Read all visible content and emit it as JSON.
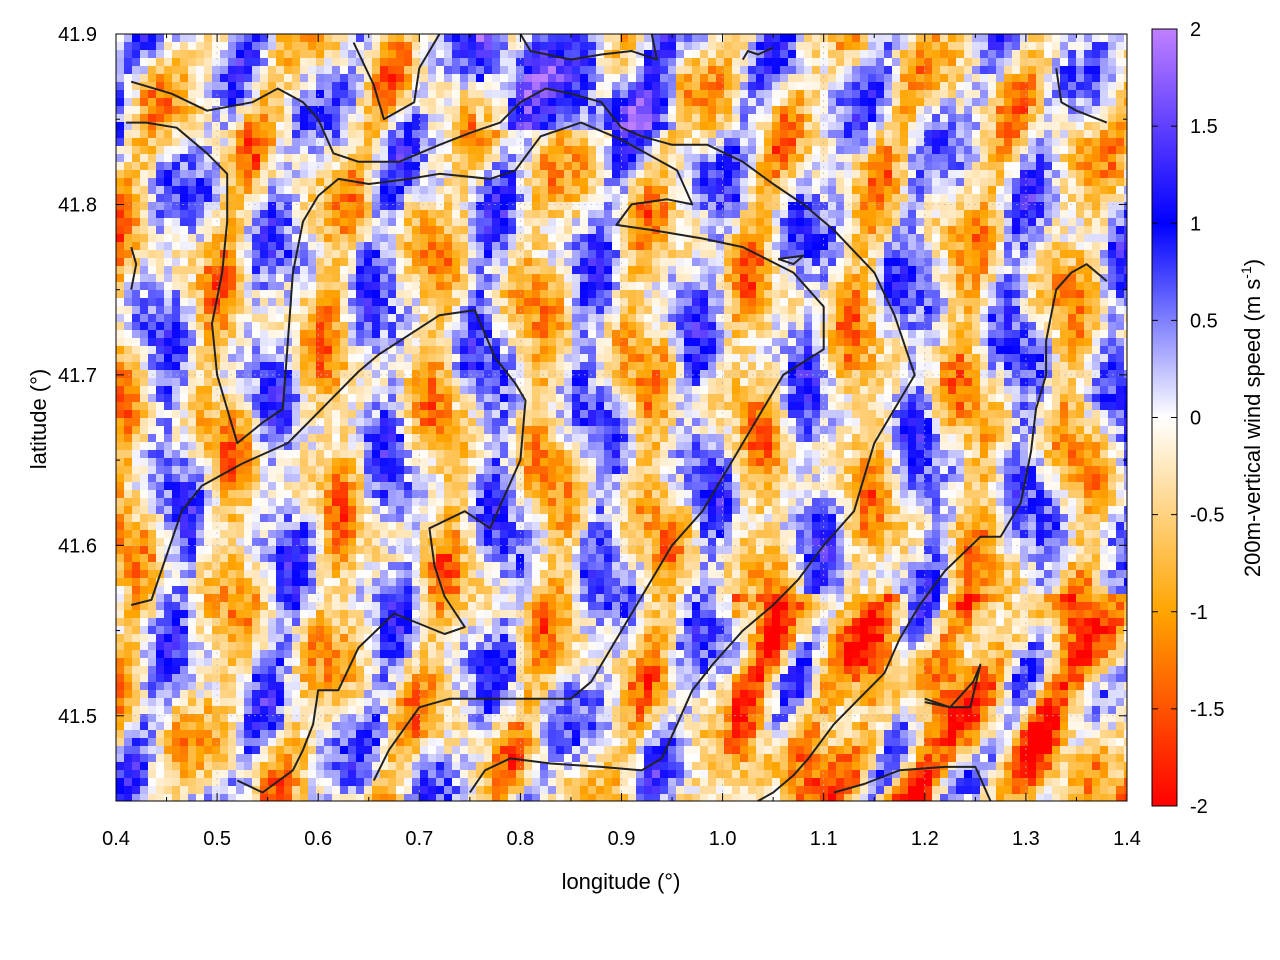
{
  "chart_data": {
    "type": "heatmap",
    "xlabel": "longitude (°)",
    "ylabel": "latitude (°)",
    "colorbar_label": "200m-vertical wind speed (m s",
    "colorbar_label_sup": "-1",
    "colorbar_label_end": ")",
    "xlim": [
      0.4,
      1.4
    ],
    "ylim": [
      41.45,
      41.9
    ],
    "x_ticks": [
      "0.4",
      "0.5",
      "0.6",
      "0.7",
      "0.8",
      "0.9",
      "1.0",
      "1.1",
      "1.2",
      "1.3",
      "1.4"
    ],
    "y_ticks": [
      "41.5",
      "41.6",
      "41.7",
      "41.8",
      "41.9"
    ],
    "color_ticks": [
      "2",
      "1.5",
      "1",
      "0.5",
      "0",
      "-0.5",
      "-1",
      "-1.5",
      "-2"
    ],
    "color_range": [
      -2,
      2
    ],
    "colorscale": [
      {
        "value": -2,
        "color": "#ff0000"
      },
      {
        "value": -1,
        "color": "#ffa500"
      },
      {
        "value": 0,
        "color": "#ffffff"
      },
      {
        "value": 1,
        "color": "#0000ff"
      },
      {
        "value": 2,
        "color": "#c080ff"
      }
    ],
    "grid": true,
    "contour_color": "#222222",
    "contours": [
      [
        [
          0.415,
          41.565
        ],
        [
          0.435,
          41.568
        ],
        [
          0.465,
          41.62
        ],
        [
          0.485,
          41.635
        ],
        [
          0.525,
          41.648
        ],
        [
          0.57,
          41.66
        ],
        [
          0.6,
          41.678
        ],
        [
          0.64,
          41.702
        ],
        [
          0.66,
          41.712
        ],
        [
          0.72,
          41.735
        ],
        [
          0.755,
          41.738
        ],
        [
          0.775,
          41.71
        ],
        [
          0.795,
          41.695
        ],
        [
          0.805,
          41.685
        ],
        [
          0.8,
          41.65
        ],
        [
          0.77,
          41.61
        ],
        [
          0.745,
          41.62
        ],
        [
          0.71,
          41.61
        ],
        [
          0.715,
          41.588
        ],
        [
          0.725,
          41.57
        ],
        [
          0.745,
          41.552
        ],
        [
          0.725,
          41.548
        ],
        [
          0.675,
          41.56
        ],
        [
          0.64,
          41.54
        ],
        [
          0.62,
          41.515
        ],
        [
          0.6,
          41.515
        ],
        [
          0.595,
          41.495
        ],
        [
          0.585,
          41.48
        ],
        [
          0.575,
          41.468
        ],
        [
          0.545,
          41.455
        ],
        [
          0.52,
          41.462
        ]
      ],
      [
        [
          0.655,
          41.462
        ],
        [
          0.67,
          41.48
        ],
        [
          0.7,
          41.505
        ],
        [
          0.73,
          41.51
        ],
        [
          0.77,
          41.51
        ],
        [
          0.8,
          41.51
        ],
        [
          0.85,
          41.51
        ],
        [
          0.87,
          41.52
        ],
        [
          0.9,
          41.55
        ],
        [
          0.92,
          41.57
        ],
        [
          0.95,
          41.6
        ],
        [
          0.98,
          41.62
        ],
        [
          1.0,
          41.64
        ],
        [
          1.02,
          41.66
        ],
        [
          1.04,
          41.68
        ],
        [
          1.06,
          41.7
        ],
        [
          1.1,
          41.715
        ],
        [
          1.1,
          41.74
        ],
        [
          1.07,
          41.76
        ],
        [
          1.02,
          41.775
        ],
        [
          0.98,
          41.78
        ],
        [
          0.93,
          41.785
        ],
        [
          0.895,
          41.788
        ],
        [
          0.91,
          41.8
        ],
        [
          0.945,
          41.803
        ],
        [
          0.97,
          41.8
        ],
        [
          0.955,
          41.82
        ],
        [
          0.9,
          41.838
        ],
        [
          0.86,
          41.848
        ],
        [
          0.82,
          41.84
        ],
        [
          0.795,
          41.82
        ],
        [
          0.77,
          41.815
        ],
        [
          0.72,
          41.818
        ],
        [
          0.69,
          41.815
        ],
        [
          0.65,
          41.812
        ],
        [
          0.62,
          41.815
        ],
        [
          0.6,
          41.805
        ],
        [
          0.585,
          41.79
        ],
        [
          0.575,
          41.76
        ],
        [
          0.57,
          41.72
        ],
        [
          0.565,
          41.68
        ],
        [
          0.545,
          41.672
        ],
        [
          0.52,
          41.66
        ],
        [
          0.5,
          41.7
        ],
        [
          0.495,
          41.73
        ],
        [
          0.505,
          41.76
        ],
        [
          0.51,
          41.79
        ],
        [
          0.51,
          41.818
        ],
        [
          0.49,
          41.83
        ],
        [
          0.46,
          41.845
        ],
        [
          0.43,
          41.848
        ],
        [
          0.41,
          41.848
        ]
      ],
      [
        [
          0.415,
          41.872
        ],
        [
          0.455,
          41.865
        ],
        [
          0.49,
          41.855
        ],
        [
          0.535,
          41.86
        ],
        [
          0.56,
          41.868
        ],
        [
          0.585,
          41.86
        ],
        [
          0.6,
          41.85
        ],
        [
          0.615,
          41.83
        ],
        [
          0.64,
          41.825
        ],
        [
          0.68,
          41.825
        ],
        [
          0.72,
          41.835
        ],
        [
          0.75,
          41.842
        ],
        [
          0.78,
          41.848
        ],
        [
          0.8,
          41.86
        ],
        [
          0.825,
          41.868
        ],
        [
          0.85,
          41.865
        ],
        [
          0.88,
          41.86
        ],
        [
          0.9,
          41.845
        ],
        [
          0.92,
          41.84
        ],
        [
          0.95,
          41.835
        ],
        [
          0.985,
          41.835
        ],
        [
          1.02,
          41.825
        ],
        [
          1.05,
          41.812
        ],
        [
          1.08,
          41.8
        ],
        [
          1.11,
          41.785
        ],
        [
          1.15,
          41.76
        ],
        [
          1.17,
          41.735
        ],
        [
          1.19,
          41.7
        ],
        [
          1.17,
          41.68
        ],
        [
          1.15,
          41.66
        ],
        [
          1.14,
          41.64
        ],
        [
          1.13,
          41.62
        ],
        [
          1.1,
          41.6
        ],
        [
          1.075,
          41.58
        ],
        [
          1.05,
          41.565
        ],
        [
          1.02,
          41.55
        ],
        [
          0.99,
          41.53
        ],
        [
          0.97,
          41.515
        ],
        [
          0.955,
          41.495
        ],
        [
          0.94,
          41.475
        ],
        [
          0.92,
          41.468
        ],
        [
          0.88,
          41.47
        ],
        [
          0.83,
          41.472
        ],
        [
          0.79,
          41.475
        ],
        [
          0.765,
          41.468
        ],
        [
          0.75,
          41.455
        ]
      ],
      [
        [
          0.635,
          41.895
        ],
        [
          0.655,
          41.87
        ],
        [
          0.665,
          41.85
        ],
        [
          0.695,
          41.86
        ],
        [
          0.7,
          41.88
        ],
        [
          0.72,
          41.9
        ]
      ],
      [
        [
          0.8,
          41.9
        ],
        [
          0.81,
          41.89
        ],
        [
          0.85,
          41.885
        ],
        [
          0.88,
          41.888
        ],
        [
          0.91,
          41.89
        ],
        [
          0.935,
          41.885
        ],
        [
          0.93,
          41.9
        ]
      ],
      [
        [
          1.02,
          41.885
        ],
        [
          1.025,
          41.89
        ],
        [
          1.035,
          41.888
        ],
        [
          1.05,
          41.892
        ]
      ],
      [
        [
          1.33,
          41.88
        ],
        [
          1.335,
          41.86
        ],
        [
          1.35,
          41.855
        ],
        [
          1.38,
          41.848
        ]
      ],
      [
        [
          1.38,
          41.755
        ],
        [
          1.36,
          41.765
        ],
        [
          1.345,
          41.76
        ],
        [
          1.33,
          41.75
        ],
        [
          1.32,
          41.72
        ],
        [
          1.32,
          41.7
        ],
        [
          1.31,
          41.68
        ],
        [
          1.305,
          41.655
        ],
        [
          1.295,
          41.625
        ],
        [
          1.275,
          41.605
        ],
        [
          1.255,
          41.605
        ],
        [
          1.22,
          41.585
        ],
        [
          1.195,
          41.565
        ],
        [
          1.175,
          41.545
        ],
        [
          1.16,
          41.525
        ],
        [
          1.135,
          41.51
        ],
        [
          1.11,
          41.495
        ],
        [
          1.085,
          41.475
        ],
        [
          1.07,
          41.465
        ],
        [
          1.05,
          41.455
        ],
        [
          1.035,
          41.45
        ]
      ],
      [
        [
          1.055,
          41.768
        ],
        [
          1.07,
          41.765
        ],
        [
          1.08,
          41.77
        ],
        [
          1.055,
          41.768
        ]
      ],
      [
        [
          1.2,
          41.508
        ],
        [
          1.225,
          41.505
        ],
        [
          1.245,
          41.505
        ],
        [
          1.255,
          41.53
        ],
        [
          1.248,
          41.52
        ],
        [
          1.225,
          41.505
        ],
        [
          1.2,
          41.51
        ]
      ],
      [
        [
          1.11,
          41.455
        ],
        [
          1.14,
          41.46
        ],
        [
          1.175,
          41.468
        ],
        [
          1.22,
          41.47
        ],
        [
          1.25,
          41.47
        ],
        [
          1.265,
          41.45
        ]
      ],
      [
        [
          0.415,
          41.775
        ],
        [
          0.42,
          41.765
        ],
        [
          0.415,
          41.75
        ]
      ]
    ]
  }
}
